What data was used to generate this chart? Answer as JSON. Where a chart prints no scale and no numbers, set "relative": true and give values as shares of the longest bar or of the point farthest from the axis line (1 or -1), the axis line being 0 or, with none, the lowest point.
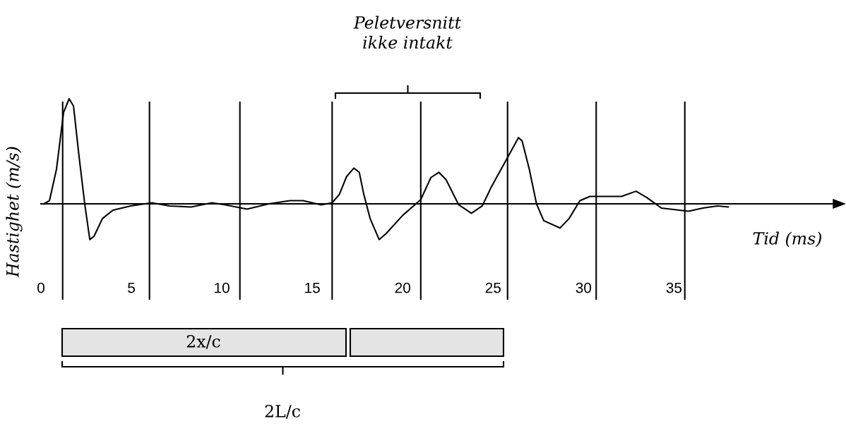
{
  "chart_data": {
    "type": "line",
    "relative": true,
    "xlabel": "Tid (ms)",
    "ylabel": "Hastighet (m/s)",
    "xlim": [
      0,
      44.2
    ],
    "xticks": [
      0,
      5,
      10,
      15,
      20,
      25,
      30,
      35
    ],
    "grid": false,
    "legend": false,
    "marker": "none",
    "line_style": "solid",
    "tick_labels": "x",
    "series": [
      {
        "color": "#000000",
        "x": [
          0.16,
          0.47,
          0.86,
          1.25,
          1.56,
          1.8,
          2.1,
          2.42,
          2.7,
          2.93,
          3.4,
          3.98,
          4.96,
          6.13,
          7.1,
          8.3,
          9.45,
          10.2,
          11.4,
          12.6,
          13.75,
          14.5,
          15.5,
          16.1,
          16.5,
          16.9,
          17.3,
          17.6,
          17.85,
          18.2,
          18.7,
          19.1,
          20.0,
          21.0,
          21.56,
          22.0,
          22.4,
          23.1,
          23.8,
          24.4,
          24.9,
          25.7,
          26.4,
          26.6,
          27.0,
          27.4,
          27.8,
          28.7,
          29.2,
          29.8,
          30.35,
          32.1,
          32.9,
          33.5,
          34.3,
          35.8,
          36.6,
          37.4,
          38.0
        ],
        "values": [
          0.0,
          0.03,
          0.33,
          0.87,
          1.0,
          0.93,
          0.46,
          0.0,
          -0.34,
          -0.31,
          -0.14,
          -0.06,
          -0.02,
          0.01,
          -0.02,
          -0.03,
          0.01,
          -0.01,
          -0.05,
          0.0,
          0.03,
          0.03,
          -0.01,
          0.01,
          0.09,
          0.26,
          0.34,
          0.3,
          0.09,
          -0.14,
          -0.34,
          -0.28,
          -0.11,
          0.04,
          0.25,
          0.3,
          0.23,
          -0.01,
          -0.09,
          -0.02,
          0.16,
          0.41,
          0.63,
          0.6,
          0.33,
          0.0,
          -0.16,
          -0.23,
          -0.14,
          0.03,
          0.07,
          0.07,
          0.12,
          0.06,
          -0.04,
          -0.07,
          -0.04,
          -0.02,
          -0.03
        ]
      }
    ],
    "ref_lines": [
      {
        "axis": "x",
        "value": 1.2,
        "color": "#000000"
      },
      {
        "axis": "x",
        "value": 6.0,
        "color": "#000000"
      },
      {
        "axis": "x",
        "value": 11.0,
        "color": "#000000"
      },
      {
        "axis": "x",
        "value": 16.1,
        "color": "#000000"
      },
      {
        "axis": "x",
        "value": 21.0,
        "color": "#000000"
      },
      {
        "axis": "x",
        "value": 25.8,
        "color": "#000000"
      },
      {
        "axis": "x",
        "value": 30.7,
        "color": "#000000"
      },
      {
        "axis": "x",
        "value": 35.6,
        "color": "#000000"
      }
    ],
    "annotations": [
      "Peletversnitt\nikke intakt",
      "2x/c",
      "2L/c"
    ]
  }
}
